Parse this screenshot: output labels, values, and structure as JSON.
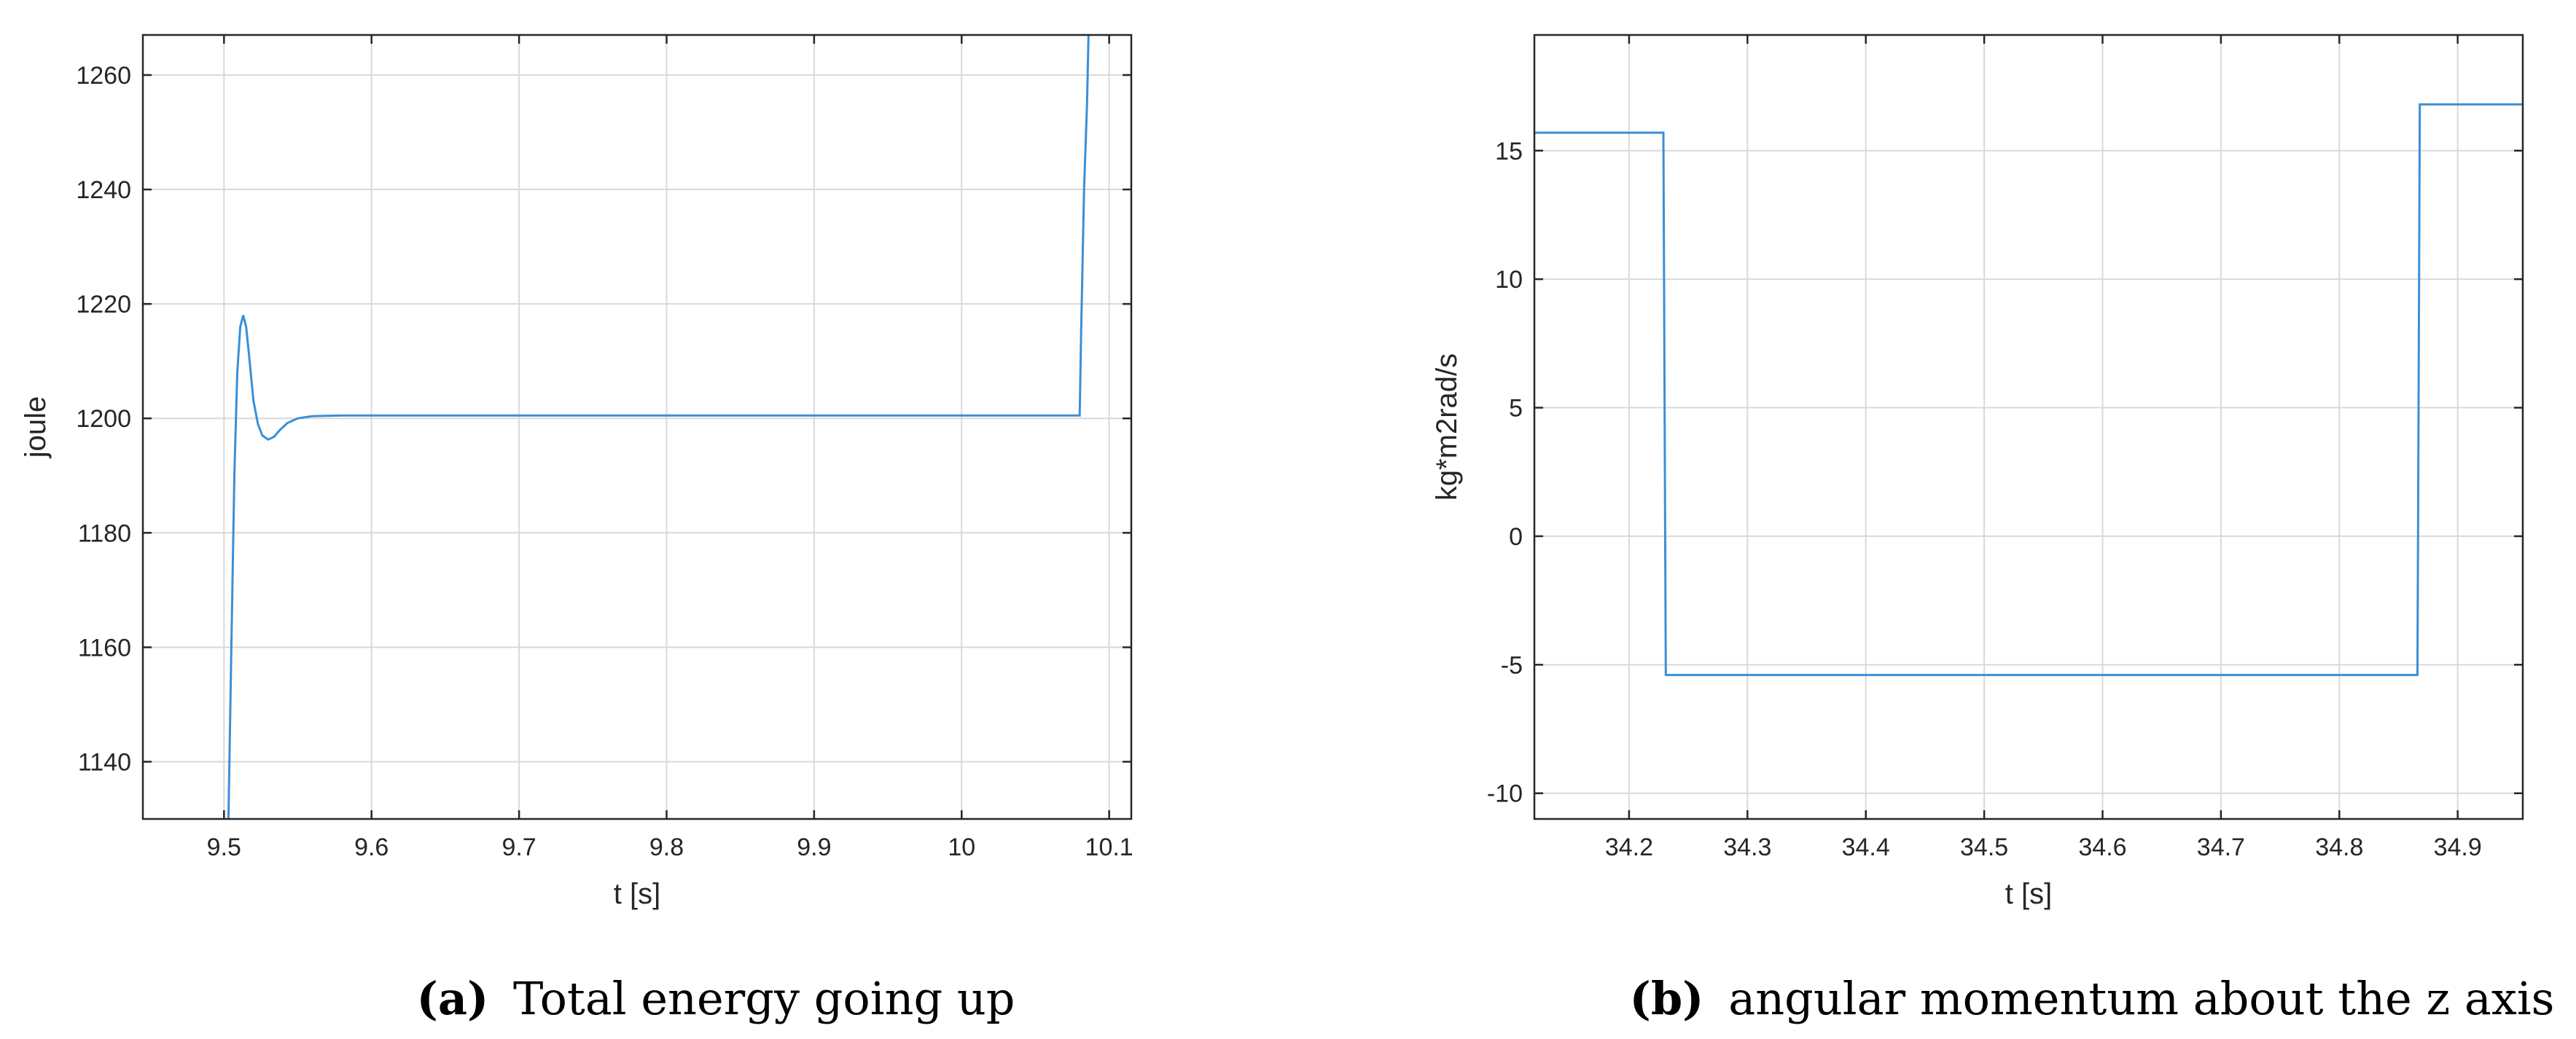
{
  "colors": {
    "line": "#3a8fd6",
    "grid": "#d9d9d9",
    "axis": "#262626",
    "background": "#ffffff"
  },
  "captions": {
    "a": {
      "tag": "(a)",
      "text": "Total energy going up"
    },
    "b": {
      "tag": "(b)",
      "text": "angular momentum about the z axis"
    }
  },
  "chart_data": [
    {
      "type": "line",
      "title": "",
      "xlabel": "t [s]",
      "ylabel": "joule",
      "xlim": [
        9.445,
        10.115
      ],
      "ylim": [
        1130,
        1267
      ],
      "xticks": [
        9.5,
        9.6,
        9.7,
        9.8,
        9.9,
        10,
        10.1
      ],
      "xtick_labels": [
        "9.5",
        "9.6",
        "9.7",
        "9.8",
        "9.9",
        "10",
        "10.1"
      ],
      "yticks": [
        1140,
        1160,
        1180,
        1200,
        1220,
        1240,
        1260
      ],
      "ytick_labels": [
        "1140",
        "1160",
        "1180",
        "1200",
        "1220",
        "1240",
        "1260"
      ],
      "grid": true,
      "series": [
        {
          "x": [
            9.503,
            9.505,
            9.507,
            9.509,
            9.511,
            9.513,
            9.515,
            9.517,
            9.52,
            9.523,
            9.526,
            9.53,
            9.534,
            9.538,
            9.543,
            9.55,
            9.56,
            9.58,
            9.6,
            10.08,
            10.081,
            10.083,
            10.085,
            10.086
          ],
          "y": [
            1130,
            1160,
            1190,
            1208,
            1216,
            1218,
            1216,
            1211,
            1203,
            1199,
            1197,
            1196.3,
            1196.8,
            1198,
            1199.2,
            1200,
            1200.4,
            1200.5,
            1200.5,
            1200.5,
            1215,
            1240,
            1255,
            1267
          ]
        }
      ]
    },
    {
      "type": "line",
      "title": "",
      "xlabel": "t [s]",
      "ylabel": "kg*m2rad/s",
      "xlim": [
        34.12,
        34.955
      ],
      "ylim": [
        -11,
        19.5
      ],
      "xticks": [
        34.2,
        34.3,
        34.4,
        34.5,
        34.6,
        34.7,
        34.8,
        34.9
      ],
      "xtick_labels": [
        "34.2",
        "34.3",
        "34.4",
        "34.5",
        "34.6",
        "34.7",
        "34.8",
        "34.9"
      ],
      "yticks": [
        -10,
        -5,
        0,
        5,
        10,
        15
      ],
      "ytick_labels": [
        "-10",
        "-5",
        "0",
        "5",
        "10",
        "15"
      ],
      "grid": true,
      "series": [
        {
          "x": [
            34.12,
            34.229,
            34.231,
            34.866,
            34.868,
            34.955
          ],
          "y": [
            15.7,
            15.7,
            -5.4,
            -5.4,
            16.8,
            16.8
          ]
        }
      ]
    }
  ]
}
